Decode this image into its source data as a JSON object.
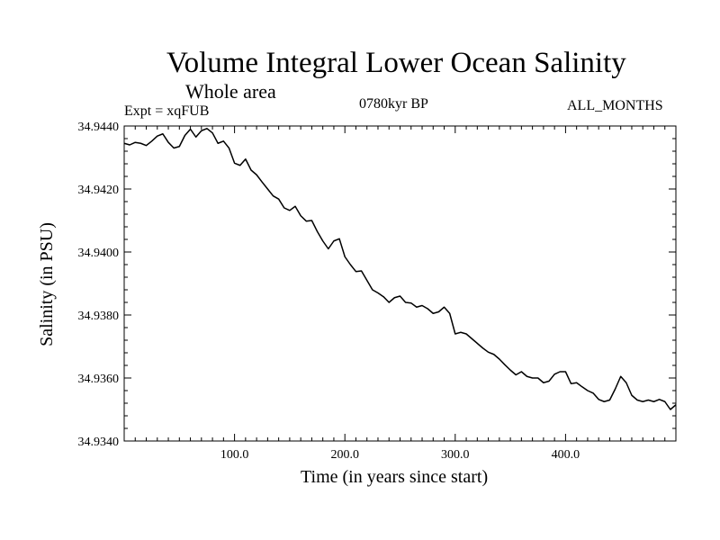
{
  "header": {
    "title": "Volume Integral Lower Ocean Salinity",
    "subtitle": "Whole area",
    "experiment": "Expt = xqFUB",
    "period": "0780kyr BP",
    "months": "ALL_MONTHS"
  },
  "chart_data": {
    "type": "line",
    "title": "Volume Integral Lower Ocean Salinity",
    "subtitle": "Whole area",
    "xlabel": "Time (in years since start)",
    "ylabel": "Salinity (in PSU)",
    "xlim": [
      0,
      500
    ],
    "ylim": [
      34.934,
      34.944
    ],
    "x_ticks": [
      100,
      200,
      300,
      400
    ],
    "x_tick_labels": [
      "100.0",
      "200.0",
      "300.0",
      "400.0"
    ],
    "y_ticks": [
      34.934,
      34.936,
      34.938,
      34.94,
      34.942,
      34.944
    ],
    "y_tick_labels": [
      "34.9340",
      "34.9360",
      "34.9380",
      "34.9400",
      "34.9420",
      "34.9440"
    ],
    "grid": false,
    "line_color": "#000000",
    "series": [
      {
        "name": "salinity",
        "x": [
          0,
          5,
          10,
          15,
          20,
          25,
          30,
          35,
          40,
          45,
          50,
          55,
          60,
          65,
          70,
          75,
          80,
          85,
          90,
          95,
          100,
          105,
          110,
          115,
          120,
          125,
          130,
          135,
          140,
          145,
          150,
          155,
          160,
          165,
          170,
          175,
          180,
          185,
          190,
          195,
          200,
          205,
          210,
          215,
          220,
          225,
          230,
          235,
          240,
          245,
          250,
          255,
          260,
          265,
          270,
          275,
          280,
          285,
          290,
          295,
          300,
          305,
          310,
          315,
          320,
          325,
          330,
          335,
          340,
          345,
          350,
          355,
          360,
          365,
          370,
          375,
          380,
          385,
          390,
          395,
          400,
          405,
          410,
          415,
          420,
          425,
          430,
          435,
          440,
          445,
          450,
          455,
          460,
          465,
          470,
          475,
          480,
          485,
          490,
          495,
          500
        ],
        "y": [
          34.94345,
          34.9434,
          34.94348,
          34.94345,
          34.94338,
          34.94352,
          34.94368,
          34.94375,
          34.94348,
          34.9433,
          34.94335,
          34.9437,
          34.9439,
          34.94365,
          34.94385,
          34.94392,
          34.94378,
          34.94345,
          34.94352,
          34.9433,
          34.94282,
          34.94275,
          34.94295,
          34.9426,
          34.94245,
          34.94222,
          34.942,
          34.94178,
          34.94168,
          34.9414,
          34.94132,
          34.94145,
          34.94115,
          34.94098,
          34.941,
          34.94065,
          34.94035,
          34.9401,
          34.94035,
          34.94042,
          34.93985,
          34.9396,
          34.93938,
          34.9394,
          34.9391,
          34.9388,
          34.9387,
          34.93858,
          34.9384,
          34.93855,
          34.9386,
          34.9384,
          34.93838,
          34.93825,
          34.9383,
          34.9382,
          34.93805,
          34.9381,
          34.93825,
          34.93805,
          34.9374,
          34.93745,
          34.9374,
          34.93725,
          34.9371,
          34.93695,
          34.93682,
          34.93675,
          34.9366,
          34.93642,
          34.93625,
          34.9361,
          34.9362,
          34.93605,
          34.936,
          34.936,
          34.93585,
          34.9359,
          34.93612,
          34.9362,
          34.9362,
          34.93582,
          34.93585,
          34.93572,
          34.9356,
          34.93552,
          34.93532,
          34.93525,
          34.9353,
          34.93565,
          34.93605,
          34.93585,
          34.93545,
          34.9353,
          34.93525,
          34.9353,
          34.93525,
          34.93532,
          34.93525,
          34.935,
          34.93515
        ]
      }
    ]
  }
}
